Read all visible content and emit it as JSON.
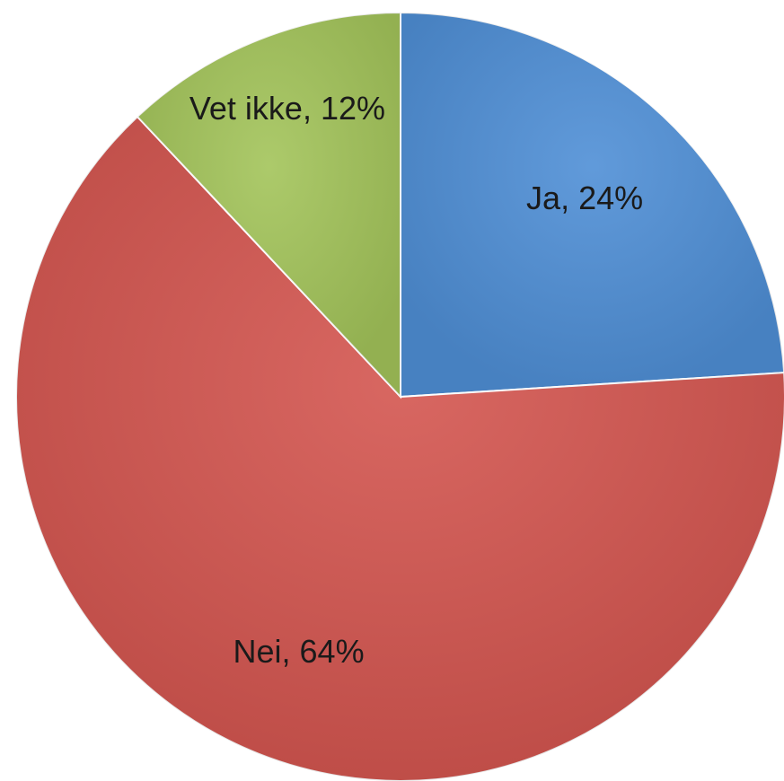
{
  "chart_data": {
    "type": "pie",
    "title": "",
    "slices": [
      {
        "label": "Ja",
        "value": 24,
        "display": "Ja, 24%",
        "color": "#4f8fd6"
      },
      {
        "label": "Nei",
        "value": 64,
        "display": "Nei, 64%",
        "color": "#d45650"
      },
      {
        "label": "Vet ikke",
        "value": 12,
        "display": "Vet ikke, 12%",
        "color": "#a3c45a"
      }
    ],
    "start": "12 o'clock",
    "direction": "clockwise",
    "legend": "none"
  }
}
